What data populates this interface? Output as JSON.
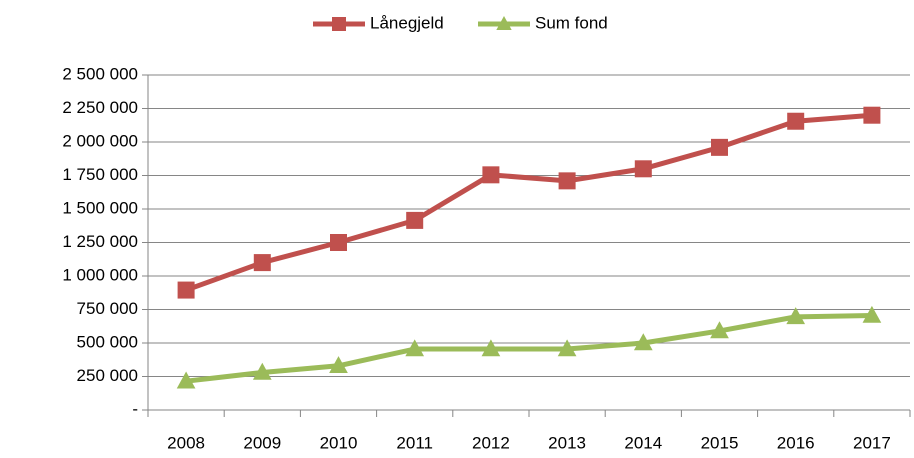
{
  "chart_data": {
    "type": "line",
    "categories": [
      "2008",
      "2009",
      "2010",
      "2011",
      "2012",
      "2013",
      "2014",
      "2015",
      "2016",
      "2017"
    ],
    "series": [
      {
        "name": "Lånegjeld",
        "color": "#c0504d",
        "marker": "square",
        "values": [
          895000,
          1100000,
          1250000,
          1415000,
          1755000,
          1710000,
          1800000,
          1960000,
          2155000,
          2200000
        ]
      },
      {
        "name": "Sum fond",
        "color": "#9bbb59",
        "marker": "triangle",
        "values": [
          215000,
          280000,
          330000,
          455000,
          455000,
          455000,
          500000,
          590000,
          695000,
          705000
        ]
      }
    ],
    "ylim": [
      0,
      2500000
    ],
    "yticks": [
      {
        "value": 0,
        "label": "-"
      },
      {
        "value": 250000,
        "label": "250 000"
      },
      {
        "value": 500000,
        "label": "500 000"
      },
      {
        "value": 750000,
        "label": "750 000"
      },
      {
        "value": 1000000,
        "label": "1 000 000"
      },
      {
        "value": 1250000,
        "label": "1 250 000"
      },
      {
        "value": 1500000,
        "label": "1 500 000"
      },
      {
        "value": 1750000,
        "label": "1 750 000"
      },
      {
        "value": 2000000,
        "label": "2 000 000"
      },
      {
        "value": 2250000,
        "label": "2 250 000"
      },
      {
        "value": 2500000,
        "label": "2 500 000"
      }
    ],
    "grid": true,
    "legend": "top"
  }
}
